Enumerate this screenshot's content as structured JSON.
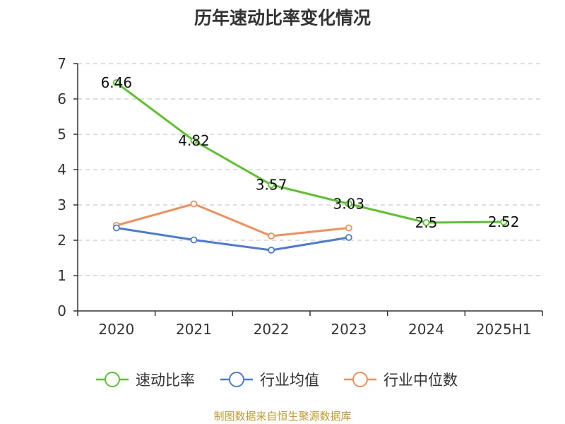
{
  "chart_data": {
    "type": "line",
    "title": "历年速动比率变化情况",
    "categories": [
      "2020",
      "2021",
      "2022",
      "2023",
      "2024",
      "2025H1"
    ],
    "series": [
      {
        "name": "速动比率",
        "color": "#5cc32c",
        "values": [
          6.46,
          4.82,
          3.57,
          3.03,
          2.5,
          2.52
        ],
        "labels": [
          "6.46",
          "4.82",
          "3.57",
          "3.03",
          "2.5",
          "2.52"
        ]
      },
      {
        "name": "行业均值",
        "color": "#4a7bd6",
        "values": [
          2.35,
          2.01,
          1.72,
          2.08,
          null,
          null
        ]
      },
      {
        "name": "行业中位数",
        "color": "#f58f5a",
        "values": [
          2.42,
          3.03,
          2.12,
          2.35,
          null,
          null
        ]
      }
    ],
    "yticks": [
      "0",
      "1",
      "2",
      "3",
      "4",
      "5",
      "6",
      "7"
    ],
    "ylim": [
      0,
      7
    ],
    "grid": true,
    "legend": "bottom",
    "source": "制图数据来自恒生聚源数据库"
  }
}
